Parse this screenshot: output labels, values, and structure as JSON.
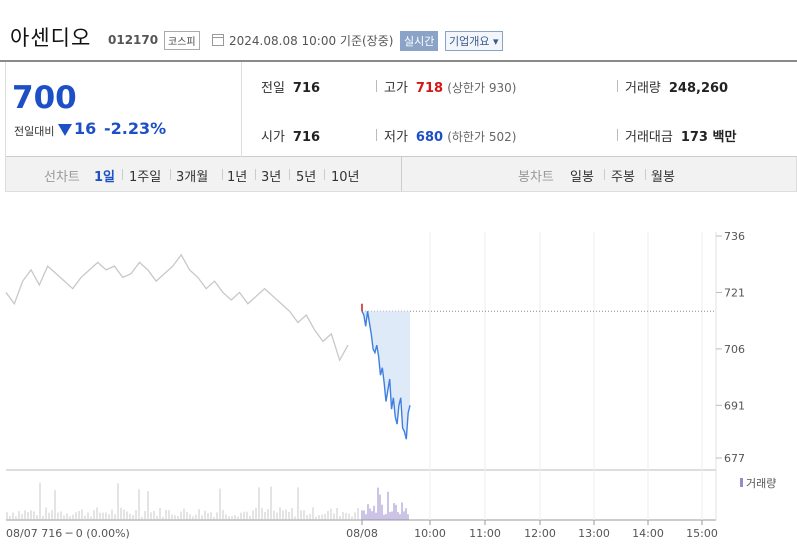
{
  "header": {
    "name": "아센디오",
    "code": "012170",
    "market": "코스피",
    "timestamp": "2024.08.08 10:00 기준(장중)",
    "realtime_label": "실시간",
    "company_label": "기업개요"
  },
  "summary": {
    "price": "700",
    "diff_label": "전일대비",
    "diff_value": "16",
    "diff_pct": "-2.23%",
    "prev_close_label": "전일",
    "prev_close": "716",
    "open_label": "시가",
    "open": "716",
    "high_label": "고가",
    "high": "718",
    "upper_limit": "(상한가 930)",
    "low_label": "저가",
    "low": "680",
    "lower_limit": "(하한가 502)",
    "volume_label": "거래량",
    "volume": "248,260",
    "amount_label": "거래대금",
    "amount": "173 백만"
  },
  "periods": {
    "line_label": "선차트",
    "items": [
      "1일",
      "1주일",
      "3개월",
      "1년",
      "3년",
      "5년",
      "10년"
    ],
    "active": "1일",
    "candle_label": "봉차트",
    "candle_items": [
      "일봉",
      "주봉",
      "월봉"
    ]
  },
  "chart_data": {
    "type": "line",
    "y_ticks": [
      "736",
      "721",
      "706",
      "691",
      "677"
    ],
    "x_ticks": [
      "08/08",
      "10:00",
      "11:00",
      "12:00",
      "13:00",
      "14:00",
      "15:00"
    ],
    "prev_footer": "08/07  716 ─ 0 (0.00%)",
    "volume_legend": "거래량",
    "ylim": [
      677,
      736
    ],
    "prev_close": 716,
    "prev_day": [
      721,
      718,
      724,
      727,
      723,
      728,
      726,
      724,
      722,
      725,
      727,
      729,
      727,
      728,
      725,
      726,
      729,
      727,
      724,
      726,
      728,
      731,
      727,
      725,
      722,
      724,
      721,
      719,
      721,
      718,
      720,
      722,
      720,
      718,
      716,
      713,
      715,
      711,
      708,
      710,
      703,
      707
    ],
    "today": [
      716,
      715,
      712,
      716,
      713,
      710,
      706,
      705,
      707,
      704,
      699,
      701,
      697,
      692,
      695,
      698,
      690,
      693,
      688,
      686,
      691,
      693,
      685,
      684,
      682,
      689,
      691
    ],
    "colors": {
      "prev_line": "#c8c8c8",
      "today_line": "#3f7fe0",
      "fill": "#dce8f8",
      "high_mark": "#d41616"
    }
  }
}
